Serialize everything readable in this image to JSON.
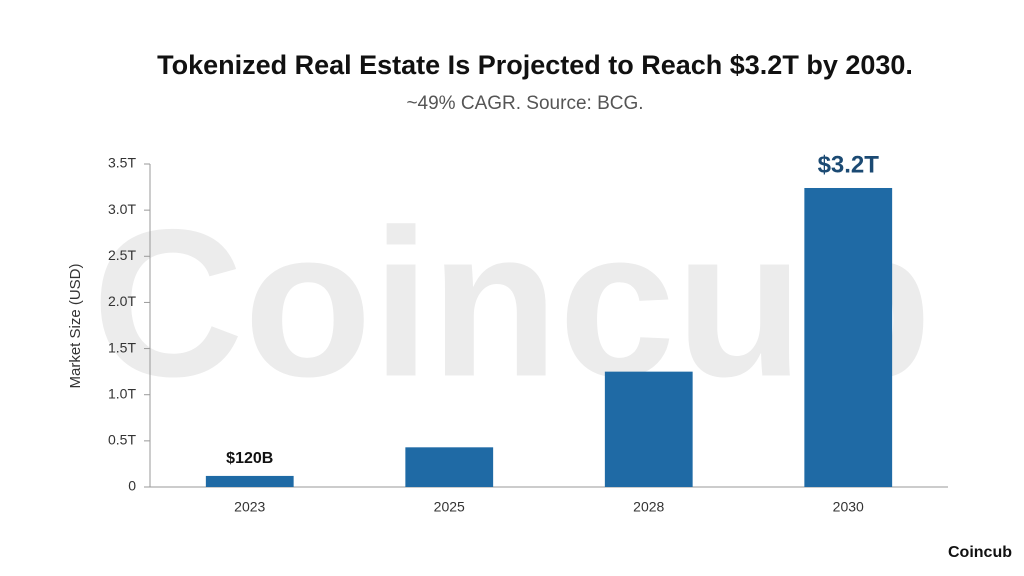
{
  "chart_data": {
    "type": "bar",
    "title": "Tokenized Real Estate Is Projected to Reach $3.2T by 2030.",
    "subtitle": "~49% CAGR. Source: BCG.",
    "y_label": "Market Size (USD)",
    "categories": [
      "2023",
      "2025",
      "2028",
      "2030"
    ],
    "values": [
      0.12,
      0.43,
      1.25,
      3.24
    ],
    "value_labels": [
      "$120B",
      null,
      null,
      "$3.2T"
    ],
    "color": "#1f6aa5",
    "ylim": [
      0,
      3.5
    ],
    "yticks": [
      0,
      {
        "value": 0.5,
        "label": "0.5T"
      },
      {
        "value": 1,
        "label": "1.0T"
      },
      {
        "value": 1.5,
        "label": "1.5T"
      },
      {
        "value": 2,
        "label": "2.0T"
      },
      {
        "value": 2.5,
        "label": "2.5T"
      },
      {
        "value": 3,
        "label": "3.0T"
      },
      {
        "value": 3.5,
        "label": "3.5T"
      }
    ],
    "grid": false,
    "watermark": "Coincub",
    "brand": "Coincub"
  }
}
